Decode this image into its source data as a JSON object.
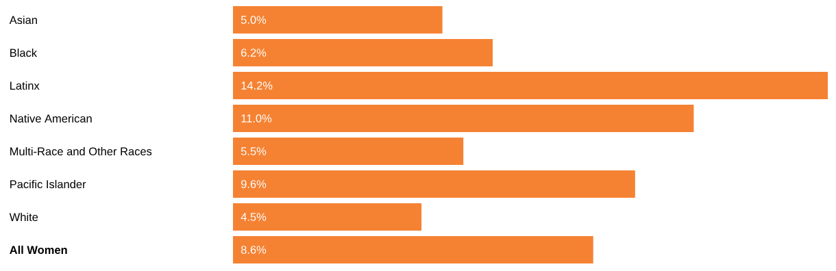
{
  "chart_data": {
    "type": "bar",
    "orientation": "horizontal",
    "categories": [
      "Asian",
      "Black",
      "Latinx",
      "Native American",
      "Multi-Race and Other Races",
      "Pacific Islander",
      "White",
      "**All Women**"
    ],
    "values": [
      5.0,
      6.2,
      14.2,
      11.0,
      5.5,
      9.6,
      4.5,
      8.6
    ],
    "value_labels": [
      "5.0%",
      "6.2%",
      "14.2%",
      "11.0%",
      "5.5%",
      "9.6%",
      "4.5%",
      "8.6%"
    ],
    "color": "#f58233"
  }
}
